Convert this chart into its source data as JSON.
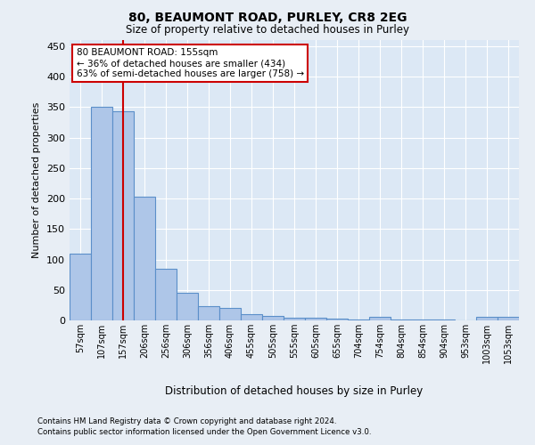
{
  "title1": "80, BEAUMONT ROAD, PURLEY, CR8 2EG",
  "title2": "Size of property relative to detached houses in Purley",
  "xlabel": "Distribution of detached houses by size in Purley",
  "ylabel": "Number of detached properties",
  "bar_labels": [
    "57sqm",
    "107sqm",
    "157sqm",
    "206sqm",
    "256sqm",
    "306sqm",
    "356sqm",
    "406sqm",
    "455sqm",
    "505sqm",
    "555sqm",
    "605sqm",
    "655sqm",
    "704sqm",
    "754sqm",
    "804sqm",
    "854sqm",
    "904sqm",
    "953sqm",
    "1003sqm",
    "1053sqm"
  ],
  "bar_values": [
    110,
    350,
    343,
    203,
    85,
    46,
    24,
    20,
    10,
    7,
    5,
    5,
    3,
    2,
    6,
    2,
    1,
    2,
    0,
    6,
    6
  ],
  "bar_color": "#aec6e8",
  "bar_edge_color": "#5b8fc9",
  "property_line_x": 2,
  "property_line_label": "80 BEAUMONT ROAD: 155sqm",
  "annotation_line1": "← 36% of detached houses are smaller (434)",
  "annotation_line2": "63% of semi-detached houses are larger (758) →",
  "annotation_box_color": "#ffffff",
  "annotation_box_edge": "#cc0000",
  "vline_color": "#cc0000",
  "ylim": [
    0,
    460
  ],
  "yticks": [
    0,
    50,
    100,
    150,
    200,
    250,
    300,
    350,
    400,
    450
  ],
  "bg_color": "#e8eef5",
  "plot_bg_color": "#dce8f5",
  "footnote1": "Contains HM Land Registry data © Crown copyright and database right 2024.",
  "footnote2": "Contains public sector information licensed under the Open Government Licence v3.0."
}
